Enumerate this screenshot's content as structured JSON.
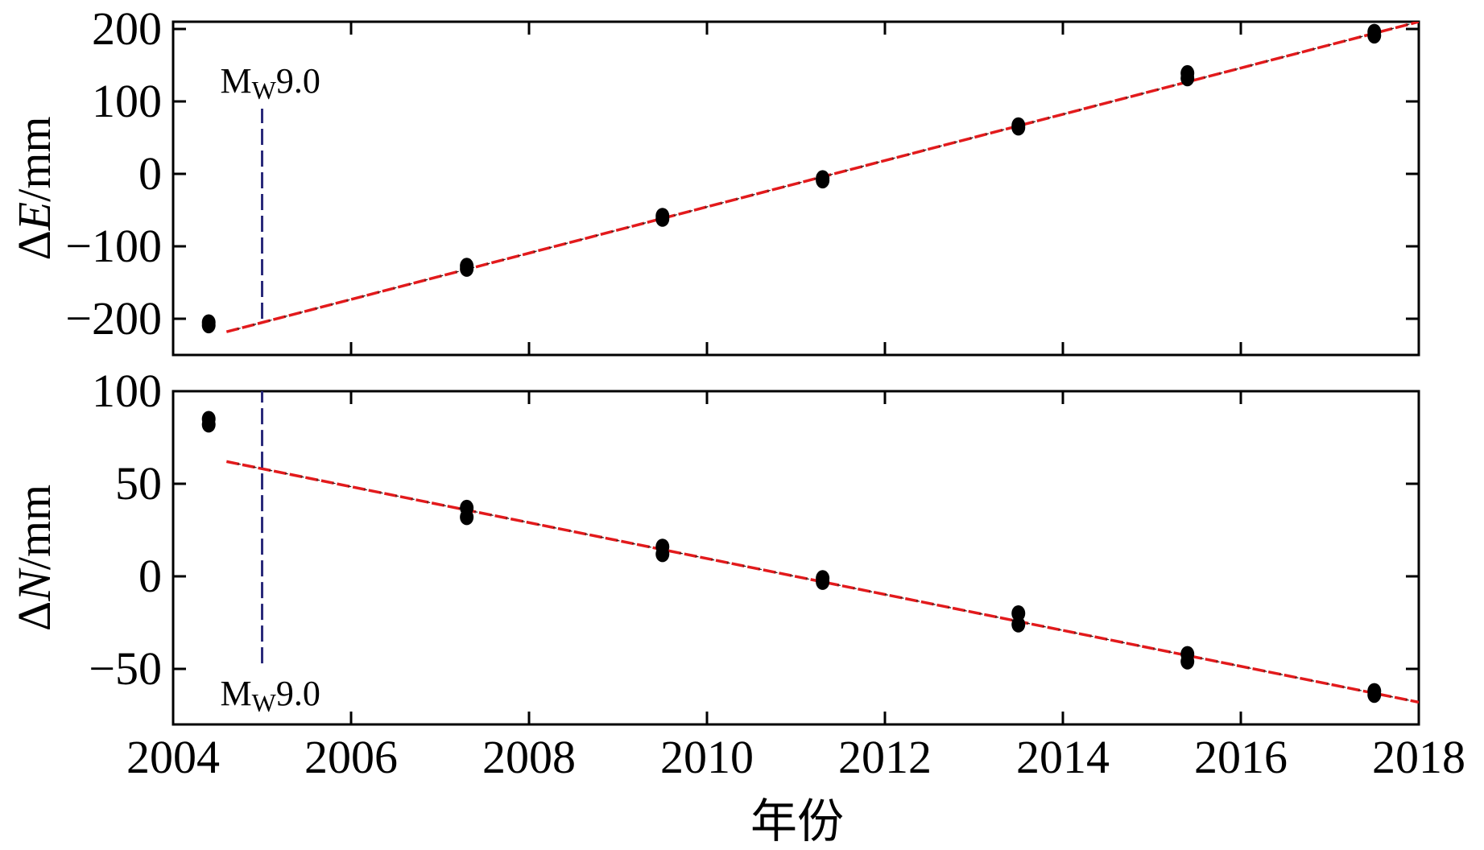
{
  "chart_data": [
    {
      "type": "scatter",
      "ylabel_symbol": "ΔE",
      "ylabel_unit": "/mm",
      "ylim": [
        -250,
        210
      ],
      "yticks": [
        -200,
        -100,
        0,
        100,
        200
      ],
      "ytick_labels": [
        "−200",
        "−100",
        "0",
        "100",
        "200"
      ],
      "xlim": [
        2004,
        2018
      ],
      "points": [
        {
          "x": 2004.4,
          "y": -205
        },
        {
          "x": 2004.4,
          "y": -209
        },
        {
          "x": 2007.3,
          "y": -127
        },
        {
          "x": 2007.3,
          "y": -131
        },
        {
          "x": 2009.5,
          "y": -58
        },
        {
          "x": 2009.5,
          "y": -62
        },
        {
          "x": 2011.3,
          "y": -6
        },
        {
          "x": 2011.3,
          "y": -9
        },
        {
          "x": 2013.5,
          "y": 64
        },
        {
          "x": 2013.5,
          "y": 67
        },
        {
          "x": 2015.4,
          "y": 132
        },
        {
          "x": 2015.4,
          "y": 139
        },
        {
          "x": 2017.5,
          "y": 191
        },
        {
          "x": 2017.5,
          "y": 196
        }
      ],
      "fit_line": {
        "x": [
          2004.6,
          2018
        ],
        "y": [
          -218,
          210
        ]
      },
      "event": {
        "x": 2005,
        "y_range": [
          -200,
          90
        ],
        "label_main": "M",
        "label_sub": "W",
        "label_value": "9.0",
        "label_position": "above"
      },
      "grid": false
    },
    {
      "type": "scatter",
      "ylabel_symbol": "ΔN",
      "ylabel_unit": "/mm",
      "ylim": [
        -80,
        100
      ],
      "yticks": [
        -50,
        0,
        50,
        100
      ],
      "ytick_labels": [
        "−50",
        "0",
        "50",
        "100"
      ],
      "xlim": [
        2004,
        2018
      ],
      "points": [
        {
          "x": 2004.4,
          "y": 85
        },
        {
          "x": 2004.4,
          "y": 82
        },
        {
          "x": 2007.3,
          "y": 37
        },
        {
          "x": 2007.3,
          "y": 32
        },
        {
          "x": 2009.5,
          "y": 16
        },
        {
          "x": 2009.5,
          "y": 12
        },
        {
          "x": 2011.3,
          "y": -1
        },
        {
          "x": 2011.3,
          "y": -3
        },
        {
          "x": 2013.5,
          "y": -20
        },
        {
          "x": 2013.5,
          "y": -26
        },
        {
          "x": 2015.4,
          "y": -42
        },
        {
          "x": 2015.4,
          "y": -46
        },
        {
          "x": 2017.5,
          "y": -62
        },
        {
          "x": 2017.5,
          "y": -64
        }
      ],
      "fit_line": {
        "x": [
          2004.6,
          2018
        ],
        "y": [
          62,
          -68
        ]
      },
      "event": {
        "x": 2005,
        "y_range": [
          -47,
          100
        ],
        "label_main": "M",
        "label_sub": "W",
        "label_value": "9.0",
        "label_position": "below"
      },
      "grid": false
    }
  ],
  "x_axis": {
    "xlabel": "年份",
    "ticks": [
      2004,
      2006,
      2008,
      2010,
      2012,
      2014,
      2016,
      2018
    ],
    "tick_labels": [
      "2004",
      "2006",
      "2008",
      "2010",
      "2012",
      "2014",
      "2016",
      "2018"
    ]
  },
  "colors": {
    "points": "#000000",
    "fit_line": "#e31a1c",
    "fit_line_dash": "#222222",
    "event_line": "#2a2a7a",
    "axes": "#000000"
  }
}
